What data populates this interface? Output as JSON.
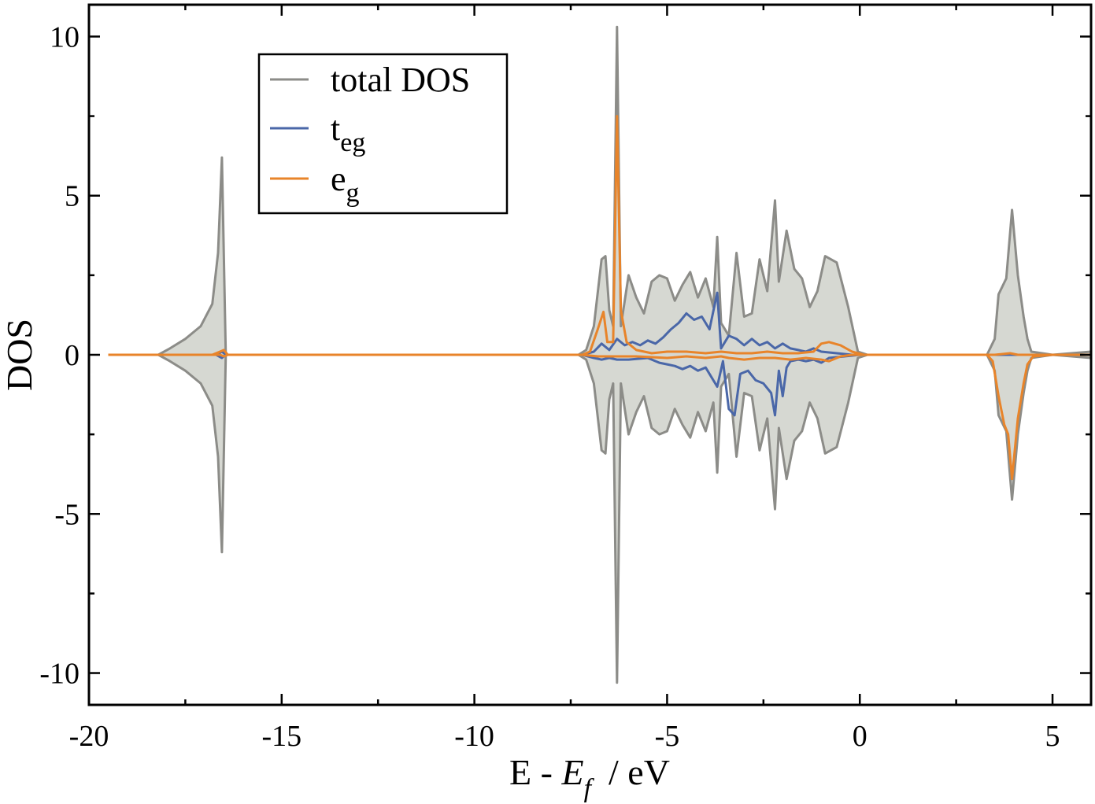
{
  "chart_data": {
    "type": "area",
    "xlabel": {
      "main": "E - ",
      "italic": "E",
      "sub": "f",
      "unit": "/   eV"
    },
    "ylabel": "DOS",
    "xlim": [
      -20,
      6
    ],
    "ylim": [
      -11,
      11
    ],
    "x_ticks": [
      -20,
      -15,
      -10,
      -5,
      0,
      5
    ],
    "y_ticks": [
      -10,
      -5,
      0,
      5,
      10
    ],
    "x_tick_labels": [
      "-20",
      "-15",
      "-10",
      "-5",
      "0",
      "5"
    ],
    "y_tick_labels": [
      "-10",
      "-5",
      "0",
      "5",
      "10"
    ],
    "legend": {
      "position": "top-left",
      "entries": [
        {
          "label": "total DOS",
          "color": "#8c8c88"
        },
        {
          "label": "t",
          "sub": "eg",
          "color": "#4a67a8"
        },
        {
          "label": "e",
          "sub": "g",
          "color": "#e8842a"
        }
      ]
    },
    "series": [
      {
        "name": "total DOS",
        "color": "#8c8c88",
        "fill": "#d6d8d2",
        "up": [
          [
            -19.5,
            0
          ],
          [
            -18.2,
            0
          ],
          [
            -17.9,
            0.2
          ],
          [
            -17.5,
            0.5
          ],
          [
            -17.1,
            0.9
          ],
          [
            -16.8,
            1.6
          ],
          [
            -16.65,
            3.2
          ],
          [
            -16.55,
            6.2
          ],
          [
            -16.45,
            0
          ],
          [
            -7.3,
            0
          ],
          [
            -7.1,
            0.15
          ],
          [
            -6.9,
            0.9
          ],
          [
            -6.7,
            3.0
          ],
          [
            -6.6,
            3.1
          ],
          [
            -6.5,
            1.4
          ],
          [
            -6.4,
            0.9
          ],
          [
            -6.3,
            10.3
          ],
          [
            -6.2,
            0.9
          ],
          [
            -6.0,
            2.5
          ],
          [
            -5.8,
            1.8
          ],
          [
            -5.6,
            1.3
          ],
          [
            -5.4,
            2.3
          ],
          [
            -5.2,
            2.5
          ],
          [
            -5.0,
            2.4
          ],
          [
            -4.8,
            1.7
          ],
          [
            -4.6,
            2.2
          ],
          [
            -4.4,
            2.6
          ],
          [
            -4.2,
            1.8
          ],
          [
            -4.0,
            2.4
          ],
          [
            -3.8,
            1.5
          ],
          [
            -3.7,
            3.7
          ],
          [
            -3.6,
            1.0
          ],
          [
            -3.4,
            0.6
          ],
          [
            -3.2,
            3.2
          ],
          [
            -3.0,
            1.2
          ],
          [
            -2.8,
            1.3
          ],
          [
            -2.6,
            3.0
          ],
          [
            -2.4,
            2.0
          ],
          [
            -2.2,
            4.85
          ],
          [
            -2.1,
            2.3
          ],
          [
            -1.9,
            3.9
          ],
          [
            -1.7,
            2.7
          ],
          [
            -1.5,
            2.4
          ],
          [
            -1.3,
            1.5
          ],
          [
            -1.1,
            2.0
          ],
          [
            -0.9,
            3.1
          ],
          [
            -0.6,
            2.9
          ],
          [
            -0.3,
            1.5
          ],
          [
            -0.05,
            0.1
          ],
          [
            0.2,
            0
          ],
          [
            3.3,
            0
          ],
          [
            3.5,
            0.5
          ],
          [
            3.6,
            1.9
          ],
          [
            3.8,
            2.4
          ],
          [
            3.95,
            4.55
          ],
          [
            4.1,
            2.5
          ],
          [
            4.25,
            1.2
          ],
          [
            4.35,
            0.5
          ],
          [
            4.45,
            0.1
          ],
          [
            5,
            0
          ],
          [
            6,
            0.1
          ]
        ],
        "down": [
          [
            -19.5,
            0
          ],
          [
            -18.2,
            0
          ],
          [
            -17.9,
            -0.2
          ],
          [
            -17.5,
            -0.5
          ],
          [
            -17.1,
            -0.9
          ],
          [
            -16.8,
            -1.6
          ],
          [
            -16.65,
            -3.2
          ],
          [
            -16.55,
            -6.2
          ],
          [
            -16.45,
            0
          ],
          [
            -7.3,
            0
          ],
          [
            -7.1,
            -0.15
          ],
          [
            -6.9,
            -0.9
          ],
          [
            -6.7,
            -3.0
          ],
          [
            -6.6,
            -3.1
          ],
          [
            -6.5,
            -1.4
          ],
          [
            -6.4,
            -0.9
          ],
          [
            -6.3,
            -10.3
          ],
          [
            -6.2,
            -0.9
          ],
          [
            -6.0,
            -2.5
          ],
          [
            -5.8,
            -1.8
          ],
          [
            -5.6,
            -1.3
          ],
          [
            -5.4,
            -2.3
          ],
          [
            -5.2,
            -2.5
          ],
          [
            -5.0,
            -2.4
          ],
          [
            -4.8,
            -1.7
          ],
          [
            -4.6,
            -2.2
          ],
          [
            -4.4,
            -2.6
          ],
          [
            -4.2,
            -1.8
          ],
          [
            -4.0,
            -2.4
          ],
          [
            -3.8,
            -1.5
          ],
          [
            -3.7,
            -3.7
          ],
          [
            -3.6,
            -1.0
          ],
          [
            -3.4,
            -0.6
          ],
          [
            -3.2,
            -3.2
          ],
          [
            -3.0,
            -1.2
          ],
          [
            -2.8,
            -1.3
          ],
          [
            -2.6,
            -3.0
          ],
          [
            -2.4,
            -2.0
          ],
          [
            -2.2,
            -4.85
          ],
          [
            -2.1,
            -2.3
          ],
          [
            -1.9,
            -3.9
          ],
          [
            -1.7,
            -2.7
          ],
          [
            -1.5,
            -2.4
          ],
          [
            -1.3,
            -1.5
          ],
          [
            -1.1,
            -2.0
          ],
          [
            -0.9,
            -3.1
          ],
          [
            -0.6,
            -2.9
          ],
          [
            -0.3,
            -1.5
          ],
          [
            -0.05,
            -0.1
          ],
          [
            0.2,
            0
          ],
          [
            3.3,
            0
          ],
          [
            3.5,
            -0.5
          ],
          [
            3.6,
            -1.9
          ],
          [
            3.8,
            -2.4
          ],
          [
            3.95,
            -4.55
          ],
          [
            4.1,
            -2.5
          ],
          [
            4.25,
            -1.2
          ],
          [
            4.35,
            -0.5
          ],
          [
            4.45,
            -0.1
          ],
          [
            5,
            0
          ],
          [
            6,
            -0.1
          ]
        ]
      },
      {
        "name": "t_eg",
        "color": "#4a67a8",
        "up": [
          [
            -19.5,
            0
          ],
          [
            -16.7,
            0
          ],
          [
            -16.55,
            0.1
          ],
          [
            -16.45,
            0
          ],
          [
            -7.2,
            0
          ],
          [
            -6.9,
            0.1
          ],
          [
            -6.7,
            0.35
          ],
          [
            -6.5,
            0.15
          ],
          [
            -6.3,
            0.5
          ],
          [
            -6.1,
            0.3
          ],
          [
            -5.9,
            0.4
          ],
          [
            -5.7,
            0.3
          ],
          [
            -5.5,
            0.45
          ],
          [
            -5.3,
            0.35
          ],
          [
            -5.1,
            0.55
          ],
          [
            -4.9,
            0.8
          ],
          [
            -4.7,
            1.0
          ],
          [
            -4.5,
            1.3
          ],
          [
            -4.3,
            1.1
          ],
          [
            -4.1,
            1.2
          ],
          [
            -3.9,
            0.8
          ],
          [
            -3.7,
            1.95
          ],
          [
            -3.6,
            0.2
          ],
          [
            -3.4,
            0.6
          ],
          [
            -3.2,
            0.5
          ],
          [
            -3.0,
            0.3
          ],
          [
            -2.8,
            0.5
          ],
          [
            -2.6,
            0.3
          ],
          [
            -2.4,
            0.4
          ],
          [
            -2.2,
            0.2
          ],
          [
            -2.0,
            0.35
          ],
          [
            -1.8,
            0.2
          ],
          [
            -1.6,
            0.15
          ],
          [
            -1.4,
            0.1
          ],
          [
            -1.2,
            0.2
          ],
          [
            -1.0,
            0.1
          ],
          [
            -0.6,
            0.05
          ],
          [
            -0.2,
            0
          ],
          [
            6,
            0
          ]
        ],
        "down": [
          [
            -19.5,
            0
          ],
          [
            -16.7,
            0
          ],
          [
            -16.55,
            -0.1
          ],
          [
            -16.45,
            0
          ],
          [
            -7.2,
            0
          ],
          [
            -6.9,
            -0.1
          ],
          [
            -6.7,
            -0.15
          ],
          [
            -6.5,
            -0.1
          ],
          [
            -6.3,
            -0.15
          ],
          [
            -6.0,
            -0.15
          ],
          [
            -5.5,
            -0.1
          ],
          [
            -5.2,
            -0.25
          ],
          [
            -5.0,
            -0.3
          ],
          [
            -4.8,
            -0.35
          ],
          [
            -4.6,
            -0.45
          ],
          [
            -4.4,
            -0.35
          ],
          [
            -4.2,
            -0.5
          ],
          [
            -4.0,
            -0.4
          ],
          [
            -3.7,
            -1.0
          ],
          [
            -3.55,
            -0.2
          ],
          [
            -3.4,
            -1.7
          ],
          [
            -3.25,
            -1.9
          ],
          [
            -3.1,
            -0.6
          ],
          [
            -2.9,
            -0.5
          ],
          [
            -2.7,
            -0.8
          ],
          [
            -2.5,
            -0.9
          ],
          [
            -2.3,
            -1.2
          ],
          [
            -2.2,
            -1.9
          ],
          [
            -2.1,
            -0.5
          ],
          [
            -2.0,
            -1.3
          ],
          [
            -1.9,
            -0.4
          ],
          [
            -1.8,
            -0.2
          ],
          [
            -1.6,
            -0.15
          ],
          [
            -1.4,
            -0.2
          ],
          [
            -1.2,
            -0.15
          ],
          [
            -1.0,
            -0.25
          ],
          [
            -0.8,
            -0.1
          ],
          [
            -0.4,
            -0.05
          ],
          [
            0,
            0
          ],
          [
            6,
            0
          ]
        ]
      },
      {
        "name": "e_g",
        "color": "#e8842a",
        "up": [
          [
            -19.5,
            0
          ],
          [
            -16.8,
            0
          ],
          [
            -16.6,
            0.1
          ],
          [
            -16.5,
            0.15
          ],
          [
            -16.4,
            0
          ],
          [
            -7.2,
            0
          ],
          [
            -7.0,
            0.1
          ],
          [
            -6.8,
            0.8
          ],
          [
            -6.65,
            1.35
          ],
          [
            -6.55,
            0.4
          ],
          [
            -6.4,
            0.4
          ],
          [
            -6.3,
            7.5
          ],
          [
            -6.2,
            1.4
          ],
          [
            -6.05,
            0.4
          ],
          [
            -5.8,
            0.15
          ],
          [
            -5.4,
            0.05
          ],
          [
            -5.0,
            0.1
          ],
          [
            -4.5,
            0.1
          ],
          [
            -4.0,
            0.05
          ],
          [
            -3.6,
            0.1
          ],
          [
            -3.2,
            0.05
          ],
          [
            -2.8,
            0.05
          ],
          [
            -2.4,
            0.1
          ],
          [
            -2.0,
            0.05
          ],
          [
            -1.6,
            0.05
          ],
          [
            -1.2,
            0.1
          ],
          [
            -1.0,
            0.35
          ],
          [
            -0.8,
            0.4
          ],
          [
            -0.5,
            0.3
          ],
          [
            -0.2,
            0.1
          ],
          [
            0.1,
            0
          ],
          [
            3.5,
            0
          ],
          [
            3.9,
            0.05
          ],
          [
            4.1,
            0
          ],
          [
            6,
            0
          ]
        ],
        "down": [
          [
            -19.5,
            0
          ],
          [
            -16.6,
            0
          ],
          [
            -16.5,
            -0.05
          ],
          [
            -16.4,
            0
          ],
          [
            -7.2,
            0
          ],
          [
            -6.8,
            -0.05
          ],
          [
            -6.4,
            -0.05
          ],
          [
            -5.8,
            -0.05
          ],
          [
            -5.0,
            -0.1
          ],
          [
            -4.5,
            -0.05
          ],
          [
            -4.0,
            -0.1
          ],
          [
            -3.6,
            -0.05
          ],
          [
            -3.4,
            -0.1
          ],
          [
            -3.0,
            -0.15
          ],
          [
            -2.6,
            -0.1
          ],
          [
            -2.2,
            -0.1
          ],
          [
            -1.8,
            -0.15
          ],
          [
            -1.4,
            -0.1
          ],
          [
            -1.0,
            -0.15
          ],
          [
            -0.8,
            -0.2
          ],
          [
            -0.5,
            -0.05
          ],
          [
            -0.2,
            0
          ],
          [
            3.3,
            0
          ],
          [
            3.45,
            -0.2
          ],
          [
            3.6,
            -1.3
          ],
          [
            3.75,
            -2.2
          ],
          [
            3.85,
            -2.5
          ],
          [
            3.95,
            -3.9
          ],
          [
            4.1,
            -2.0
          ],
          [
            4.25,
            -0.9
          ],
          [
            4.35,
            -0.3
          ],
          [
            4.5,
            -0.05
          ],
          [
            5,
            0
          ],
          [
            6,
            0
          ]
        ]
      }
    ]
  }
}
